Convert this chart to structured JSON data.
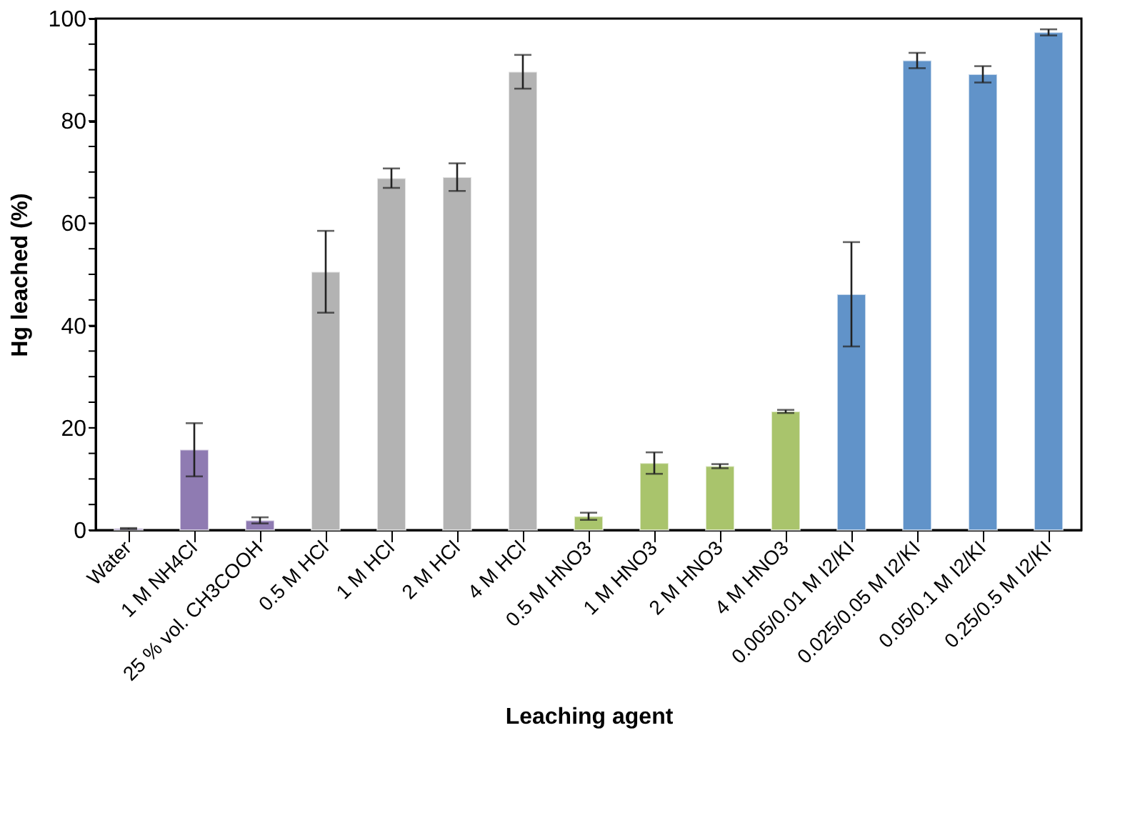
{
  "chart_data": {
    "type": "bar",
    "xlabel": "Leaching agent",
    "ylabel": "Hg leached (%)",
    "categories": [
      "Water",
      "1 M NH4Cl",
      "25 % vol. CH3COOH",
      "0.5 M HCl",
      "1 M HCl",
      "2 M HCl",
      "4 M HCl",
      "0.5 M HNO3",
      "1 M HNO3",
      "2 M HNO3",
      "4 M HNO3",
      "0.005/0.01 M I2/KI",
      "0.025/0.05 M I2/KI",
      "0.05/0.1 M I2/KI",
      "0.25/0.5 M I2/KI"
    ],
    "values": [
      0.3,
      15.7,
      1.9,
      50.5,
      68.8,
      69,
      89.6,
      2.7,
      13.1,
      12.5,
      23.2,
      46.1,
      91.8,
      89.1,
      97.3
    ],
    "errors": [
      0.1,
      5.2,
      0.6,
      8,
      1.9,
      2.7,
      3.3,
      0.7,
      2.1,
      0.4,
      0.3,
      10.2,
      1.5,
      1.6,
      0.6
    ],
    "colors": [
      "#8f7bb2",
      "#8f7bb2",
      "#8f7bb2",
      "#b3b3b3",
      "#b3b3b3",
      "#b3b3b3",
      "#b3b3b3",
      "#a9c46c",
      "#a9c46c",
      "#a9c46c",
      "#a9c46c",
      "#6193c9",
      "#6193c9",
      "#6193c9",
      "#6193c9"
    ],
    "ylim": [
      0,
      100
    ],
    "yticks": [
      0,
      {
        "value": 5,
        "label": null
      },
      {
        "value": 10,
        "label": null
      },
      {
        "value": 15,
        "label": null
      },
      20,
      {
        "value": 25,
        "label": null
      },
      {
        "value": 30,
        "label": null
      },
      {
        "value": 35,
        "label": null
      },
      40,
      {
        "value": 45,
        "label": null
      },
      {
        "value": 50,
        "label": null
      },
      {
        "value": 55,
        "label": null
      },
      60,
      {
        "value": 65,
        "label": null
      },
      {
        "value": 70,
        "label": null
      },
      {
        "value": 75,
        "label": null
      },
      80,
      {
        "value": 85,
        "label": null
      },
      {
        "value": 90,
        "label": null
      },
      {
        "value": 95,
        "label": null
      },
      100
    ],
    "grid": false
  }
}
